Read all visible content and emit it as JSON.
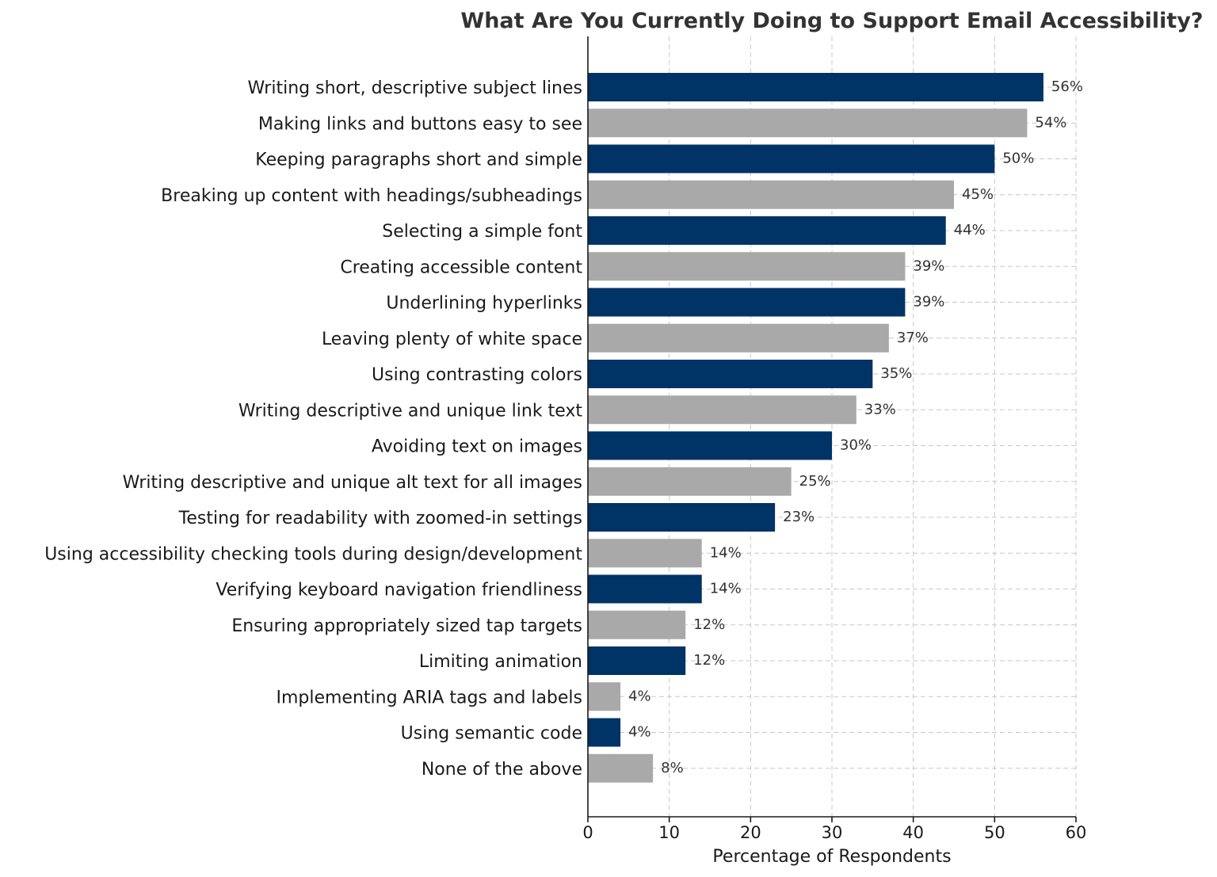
{
  "chart_data": {
    "type": "bar",
    "orientation": "horizontal",
    "title": "What Are You Currently Doing to Support Email Accessibility?",
    "xlabel": "Percentage of Respondents",
    "ylabel": "",
    "xlim": [
      0,
      60
    ],
    "xticks": [
      0,
      10,
      20,
      30,
      40,
      50,
      60
    ],
    "grid": true,
    "colors": [
      "#003366",
      "#a9a9a9"
    ],
    "categories": [
      "Writing short, descriptive subject lines",
      "Making links and buttons easy to see",
      "Keeping paragraphs short and simple",
      "Breaking up content with headings/subheadings",
      "Selecting a simple font",
      "Creating accessible content",
      "Underlining hyperlinks",
      "Leaving plenty of white space",
      "Using contrasting colors",
      "Writing descriptive and unique link text",
      "Avoiding text on images",
      "Writing descriptive and unique alt text for all images",
      "Testing for readability with zoomed-in settings",
      "Using accessibility checking tools during design/development",
      "Verifying keyboard navigation friendliness",
      "Ensuring appropriately sized tap targets",
      "Limiting animation",
      "Implementing ARIA tags and labels",
      "Using semantic code",
      "None of the above"
    ],
    "values": [
      56,
      54,
      50,
      45,
      44,
      39,
      39,
      37,
      35,
      33,
      30,
      25,
      23,
      14,
      14,
      12,
      12,
      4,
      4,
      8
    ],
    "value_labels": [
      "56%",
      "54%",
      "50%",
      "45%",
      "44%",
      "39%",
      "39%",
      "37%",
      "35%",
      "33%",
      "30%",
      "25%",
      "23%",
      "14%",
      "14%",
      "12%",
      "12%",
      "4%",
      "4%",
      "8%"
    ]
  }
}
